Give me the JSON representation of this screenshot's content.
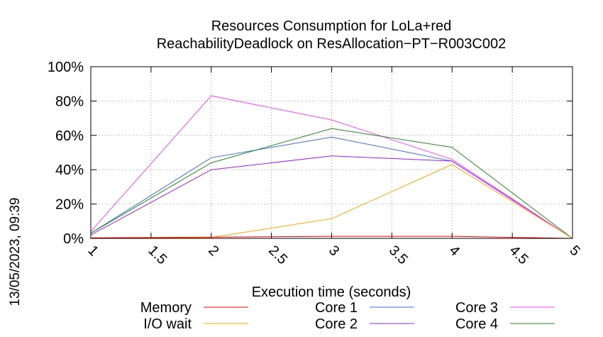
{
  "chart_data": {
    "type": "line",
    "title": "Resources Consumption for LoLa+red",
    "subtitle": "ReachabilityDeadlock on ResAllocation−PT−R003C002",
    "xlabel": "Execution time (seconds)",
    "ylabel": "",
    "xlim": [
      1,
      5
    ],
    "ylim": [
      0,
      100
    ],
    "x_ticks": [
      "1",
      "1.5",
      "2",
      "2.5",
      "3",
      "3.5",
      "4",
      "4.5",
      "5"
    ],
    "y_ticks": [
      "0%",
      "20%",
      "40%",
      "60%",
      "80%",
      "100%"
    ],
    "grid": true,
    "legend_placement": "bottom",
    "x": [
      1,
      2,
      3,
      4,
      5
    ],
    "series": [
      {
        "name": "Memory",
        "color": "#ff0000",
        "values": [
          0.3,
          0.7,
          1.2,
          1.2,
          0
        ]
      },
      {
        "name": "I/O wait",
        "color": "#ffa500",
        "values": [
          0,
          0.5,
          11.5,
          43,
          0
        ]
      },
      {
        "name": "Core 1",
        "color": "#4169e1",
        "values": [
          3,
          47,
          59,
          45,
          0
        ]
      },
      {
        "name": "Core 2",
        "color": "#a020f0",
        "values": [
          2,
          40,
          48,
          45,
          0
        ]
      },
      {
        "name": "Core 3",
        "color": "#ff44ff",
        "values": [
          4,
          83,
          69,
          46,
          0
        ]
      },
      {
        "name": "Core 4",
        "color": "#228b22",
        "values": [
          3,
          44,
          64,
          53,
          0
        ]
      }
    ]
  },
  "timestamp": "13/05/2023, 09:39"
}
